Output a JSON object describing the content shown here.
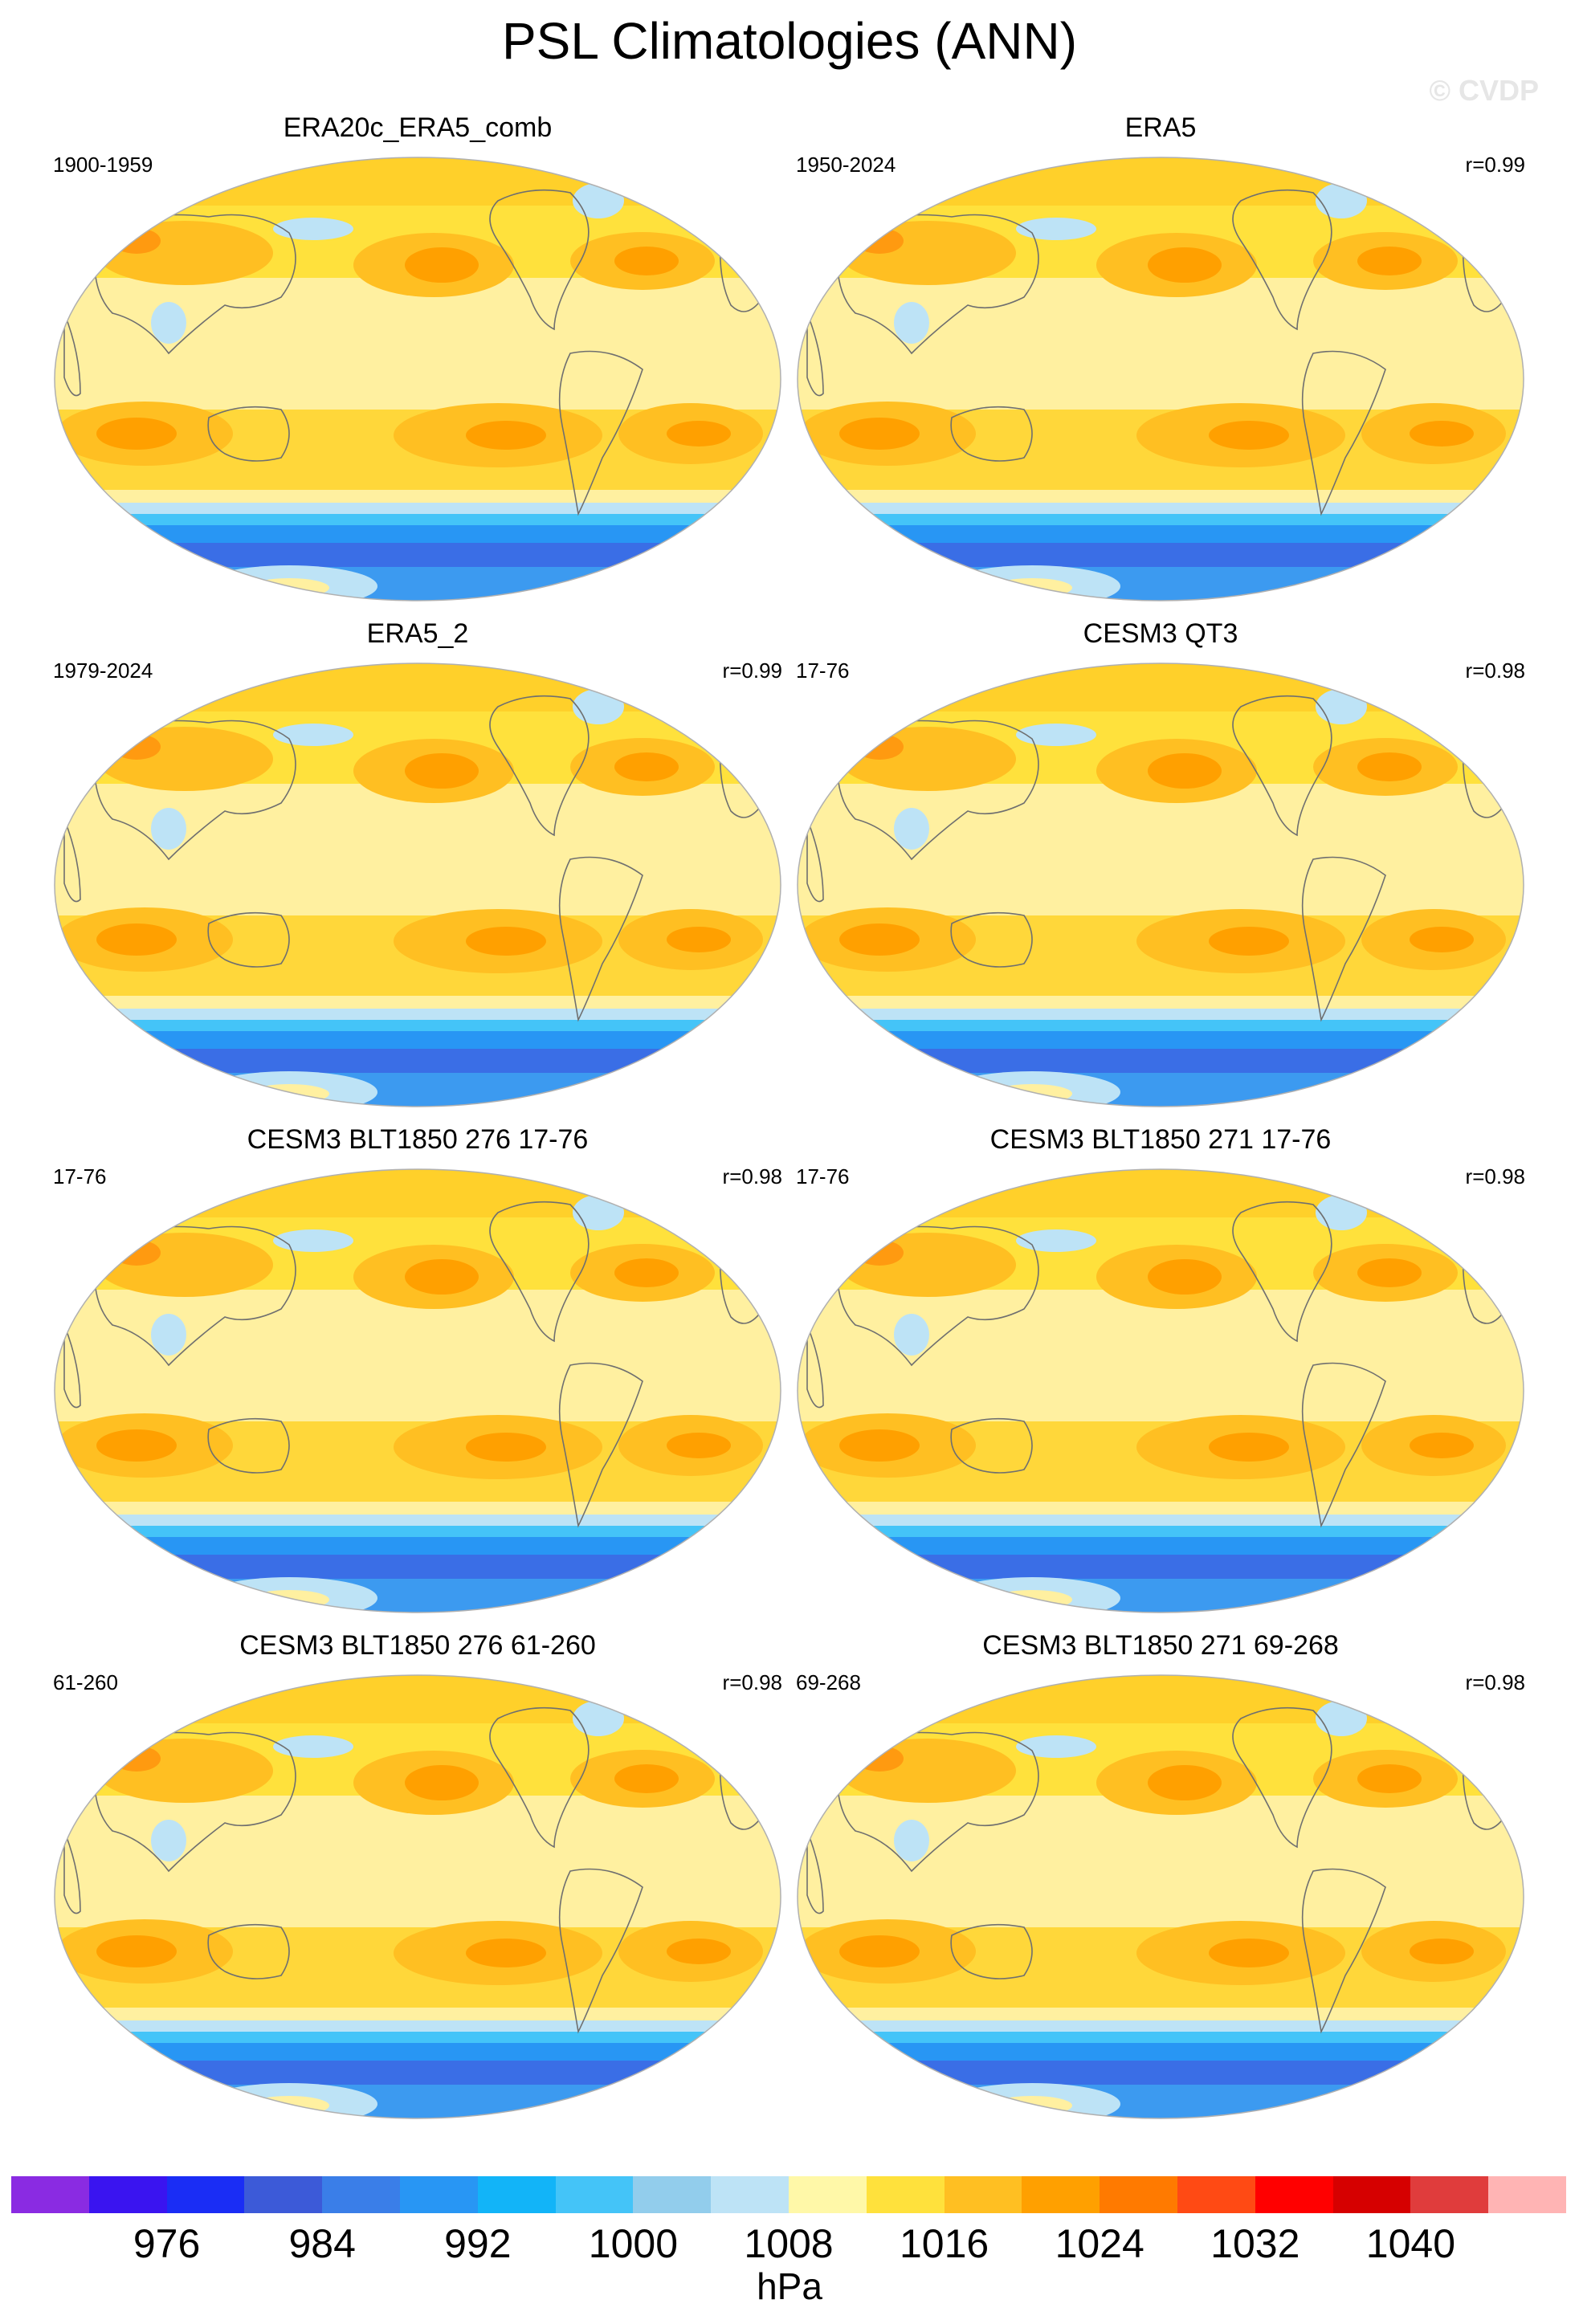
{
  "title": "PSL Climatologies (ANN)",
  "watermark": "© CVDP",
  "panels": [
    {
      "title": "ERA20c_ERA5_comb",
      "period": "1900-1959",
      "corr": ""
    },
    {
      "title": "ERA5",
      "period": "1950-2024",
      "corr": "r=0.99"
    },
    {
      "title": "ERA5_2",
      "period": "1979-2024",
      "corr": "r=0.99"
    },
    {
      "title": "CESM3 QT3",
      "period": "17-76",
      "corr": "r=0.98"
    },
    {
      "title": "CESM3 BLT1850 276 17-76",
      "period": "17-76",
      "corr": "r=0.98"
    },
    {
      "title": "CESM3 BLT1850 271 17-76",
      "period": "17-76",
      "corr": "r=0.98"
    },
    {
      "title": "CESM3 BLT1850 276 61-260",
      "period": "61-260",
      "corr": "r=0.98"
    },
    {
      "title": "CESM3 BLT1850 271 69-268",
      "period": "69-268",
      "corr": "r=0.98"
    }
  ],
  "colorbar": {
    "colors": [
      "#8a2be2",
      "#3a14f0",
      "#1a2df5",
      "#3c5ad8",
      "#3a7ee8",
      "#2896f4",
      "#12b4f8",
      "#44c4f8",
      "#92cdec",
      "#bde3f6",
      "#fff8a8",
      "#ffe13c",
      "#ffbf22",
      "#ffa000",
      "#ff7a00",
      "#ff4a14",
      "#ff0000",
      "#d60000",
      "#e03c3c",
      "#ffb4b4"
    ],
    "tick_labels": [
      "976",
      "984",
      "992",
      "1000",
      "1008",
      "1016",
      "1024",
      "1032",
      "1040"
    ],
    "unit": "hPa"
  }
}
